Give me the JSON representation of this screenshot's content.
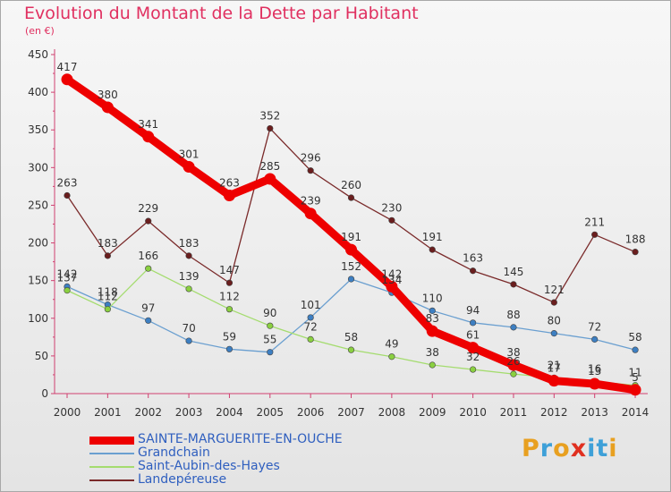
{
  "title": "Evolution du Montant de la Dette par Habitant",
  "unit_label": "(en €)",
  "brand": {
    "text": "Proxiti",
    "colors": [
      "#e8a020",
      "#3ea0d8",
      "#e8a020",
      "#e03020",
      "#3ea0d8",
      "#3ea0d8",
      "#e8a020"
    ]
  },
  "chart_data": {
    "type": "line",
    "x": [
      "2000",
      "2001",
      "2002",
      "2003",
      "2004",
      "2005",
      "2006",
      "2007",
      "2008",
      "2009",
      "2010",
      "2011",
      "2012",
      "2013",
      "2014"
    ],
    "ylim": [
      0,
      450
    ],
    "yticks": [
      0,
      50,
      100,
      150,
      200,
      250,
      300,
      350,
      400,
      450
    ],
    "grid": false,
    "legend_position": "bottom-left",
    "series": [
      {
        "name": "SAINTE-MARGUERITE-EN-OUCHE",
        "color": "#ee0000",
        "marker": "#ee0000",
        "width": 9,
        "values": [
          417,
          380,
          341,
          301,
          263,
          285,
          239,
          191,
          142,
          83,
          61,
          38,
          17,
          13,
          5
        ]
      },
      {
        "name": "Grandchain",
        "color": "#6a9fd0",
        "marker": "#3d7fc2",
        "width": 1.3,
        "values": [
          142,
          118,
          97,
          70,
          59,
          55,
          101,
          152,
          134,
          110,
          94,
          88,
          80,
          72,
          58
        ]
      },
      {
        "name": "Saint-Aubin-des-Hayes",
        "color": "#a4dc6e",
        "marker": "#8ad040",
        "width": 1.3,
        "values": [
          137,
          112,
          166,
          139,
          112,
          90,
          72,
          58,
          49,
          38,
          32,
          26,
          21,
          16,
          11
        ]
      },
      {
        "name": "Landepéreuse",
        "color": "#7a2a2a",
        "marker": "#6a1e1e",
        "width": 1.3,
        "values": [
          263,
          183,
          229,
          183,
          147,
          352,
          296,
          260,
          230,
          191,
          163,
          145,
          121,
          211,
          188
        ]
      }
    ]
  }
}
